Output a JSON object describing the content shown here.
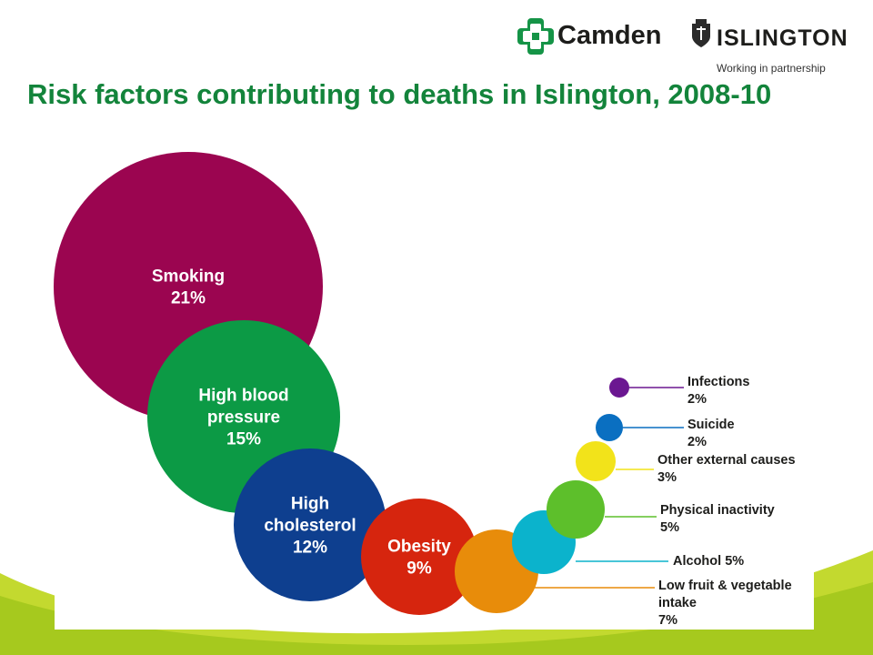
{
  "header": {
    "camden_label": "Camden",
    "islington_label": "ISLINGTON",
    "partnership_label": "Working in partnership"
  },
  "colors": {
    "title": "#13843b",
    "smoking": "#9b0550",
    "high_blood_pressure": "#0c9a45",
    "high_cholesterol": "#0e3f8f",
    "obesity": "#d6250e",
    "low_fruit_veg": "#e88c0a",
    "alcohol": "#0bb3cc",
    "physical_inactivity": "#5dbf2b",
    "other_external": "#f2e31a",
    "suicide": "#0a6fc1",
    "infections": "#6b1791"
  },
  "chart_data": {
    "type": "bubble",
    "title": "Risk factors contributing to deaths in Islington, 2008-10",
    "series": [
      {
        "label_lines": [
          "Smoking",
          "21%"
        ],
        "value": 21
      },
      {
        "label_lines": [
          "High blood",
          "pressure",
          "15%"
        ],
        "value": 15
      },
      {
        "label_lines": [
          "High",
          "cholesterol",
          "12%"
        ],
        "value": 12
      },
      {
        "label_lines": [
          "Obesity",
          "9%"
        ],
        "value": 9
      },
      {
        "label_lines": [
          "Low fruit & vegetable",
          "intake",
          "7%"
        ],
        "value": 7
      },
      {
        "label_lines": [
          "Alcohol 5%"
        ],
        "value": 5
      },
      {
        "label_lines": [
          "Physical inactivity",
          "5%"
        ],
        "value": 5
      },
      {
        "label_lines": [
          "Other external causes",
          "3%"
        ],
        "value": 3
      },
      {
        "label_lines": [
          "Suicide",
          "2%"
        ],
        "value": 2
      },
      {
        "label_lines": [
          "Infections",
          "2%"
        ],
        "value": 2
      }
    ]
  }
}
